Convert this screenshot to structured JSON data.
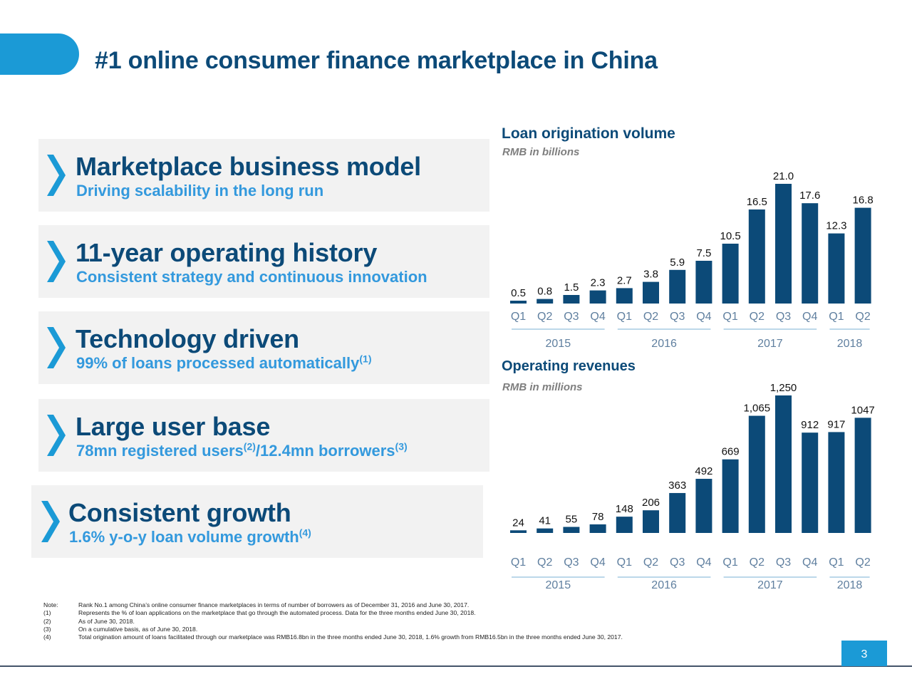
{
  "colors": {
    "accent": "#1b9ad6",
    "title": "#0c4a78",
    "subtitle": "#3399dd",
    "bar": "#0c4a78",
    "axis_text": "#5f7f9f",
    "panel": "#f2f2f2"
  },
  "page": {
    "title": "#1 online consumer finance marketplace in China",
    "page_number": "3"
  },
  "highlights": [
    {
      "title": "Marketplace business model",
      "subtitle": "Driving scalability in the long run",
      "sup": "",
      "icon": "chevron-right-icon"
    },
    {
      "title": "11-year operating history",
      "subtitle": "Consistent strategy and continuous innovation",
      "sup": "",
      "icon": "chevron-right-icon"
    },
    {
      "title": "Technology driven",
      "subtitle": "99% of loans processed automatically",
      "sup": "(1)",
      "icon": "chevron-right-icon"
    },
    {
      "title": "Large user base",
      "subtitle_a": "78mn registered users",
      "sup_a": "(2)",
      "subtitle_b": "/12.4mn borrowers",
      "sup_b": "(3)",
      "icon": "chevron-right-icon"
    },
    {
      "title": "Consistent growth",
      "subtitle": "1.6% y-o-y loan volume growth",
      "sup": "(4)",
      "icon": "chevron-right-icon"
    }
  ],
  "chart_data": [
    {
      "type": "bar",
      "title": "Loan origination volume",
      "unit": "RMB in billions",
      "categories": [
        "Q1",
        "Q2",
        "Q3",
        "Q4",
        "Q1",
        "Q2",
        "Q3",
        "Q4",
        "Q1",
        "Q2",
        "Q3",
        "Q4",
        "Q1",
        "Q2"
      ],
      "years": [
        {
          "label": "2015",
          "quarters": 4
        },
        {
          "label": "2016",
          "quarters": 4
        },
        {
          "label": "2017",
          "quarters": 4
        },
        {
          "label": "2018",
          "quarters": 2
        }
      ],
      "values": [
        0.5,
        0.8,
        1.5,
        2.3,
        2.7,
        3.8,
        5.9,
        7.5,
        10.5,
        16.5,
        21.0,
        17.6,
        12.3,
        16.8
      ],
      "labels": [
        "0.5",
        "0.8",
        "1.5",
        "2.3",
        "2.7",
        "3.8",
        "5.9",
        "7.5",
        "10.5",
        "16.5",
        "21.0",
        "17.6",
        "12.3",
        "16.8"
      ]
    },
    {
      "type": "bar",
      "title": "Operating revenues",
      "unit": "RMB in millions",
      "categories": [
        "Q1",
        "Q2",
        "Q3",
        "Q4",
        "Q1",
        "Q2",
        "Q3",
        "Q4",
        "Q1",
        "Q2",
        "Q3",
        "Q4",
        "Q1",
        "Q2"
      ],
      "years": [
        {
          "label": "2015",
          "quarters": 4
        },
        {
          "label": "2016",
          "quarters": 4
        },
        {
          "label": "2017",
          "quarters": 4
        },
        {
          "label": "2018",
          "quarters": 2
        }
      ],
      "values": [
        24,
        41,
        55,
        78,
        148,
        206,
        363,
        492,
        669,
        1065,
        1250,
        912,
        917,
        1047
      ],
      "labels": [
        "24",
        "41",
        "55",
        "78",
        "148",
        "206",
        "363",
        "492",
        "669",
        "1,065",
        "1,250",
        "912",
        "917",
        "1047"
      ]
    }
  ],
  "footnotes": [
    {
      "key": "Note:",
      "text": "Rank No.1 among China’s online consumer finance marketplaces in terms of number of borrowers as of  December 31, 2016 and June 30, 2017."
    },
    {
      "key": "(1)",
      "text": "Represents the % of loan applications on the marketplace that go through the automated process. Data for the three months ended June 30, 2018."
    },
    {
      "key": "(2)",
      "text": "As of June 30, 2018."
    },
    {
      "key": "(3)",
      "text": "On a cumulative basis, as of June 30, 2018."
    },
    {
      "key": "(4)",
      "text": "Total origination amount of loans facilitated through our marketplace was RMB16.8bn in the three months ended June 30, 2018, 1.6% growth from RMB16.5bn in the three months ended June 30, 2017."
    }
  ]
}
